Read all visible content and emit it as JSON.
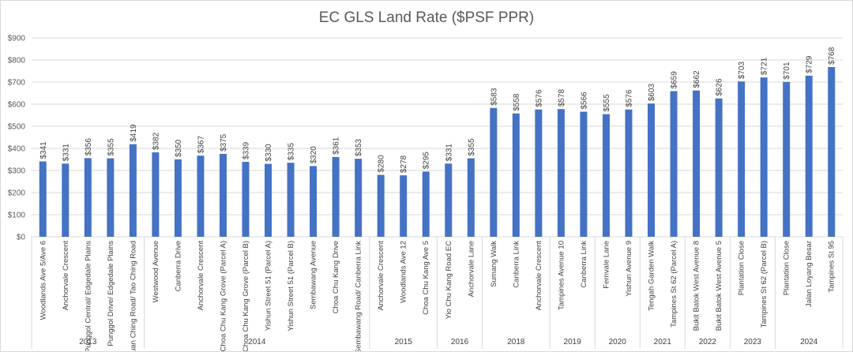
{
  "chart_data": {
    "type": "bar",
    "title": "EC GLS Land Rate ($PSF PPR)",
    "xlabel": "",
    "ylabel": "",
    "ylim": [
      0,
      900
    ],
    "yticks": [
      "$0",
      "$100",
      "$200",
      "$300",
      "$400",
      "$500",
      "$600",
      "$700",
      "$800",
      "$900"
    ],
    "bar_color": "#4472c4",
    "grid": true,
    "legend": "none",
    "categories": [
      "Woodlands Ave 5/Ave 6",
      "Anchorvale Crescent",
      "Punggol Central/ Edgedale Plains",
      "Punggol Drive/ Edgedale Plains",
      "Yuan Ching Road/ Tao Ching Road",
      "Westwood Avenue",
      "Canberra Drive",
      "Anchorvale Crescent",
      "Choa Chu Kang Grove (Parcel A)",
      "Choa Chu Kang Grove (Parcel B)",
      "Yishun Street 51 (Parcel A)",
      "Yishun Street 51 (Parcel B)",
      "Sembawang Avenue",
      "Choa Chu Kang Drive",
      "Sembawang Road/ Canberra Link",
      "Anchorvale Crescent",
      "Woodlands Ave 12",
      "Choa Chu Kang Ave 5",
      "Yio Chu Kang Road EC",
      "Anchorvale Lane",
      "Sumang Walk",
      "Canberra Link",
      "Anchorvale Crescent",
      "Tampines Avenue 10",
      "Canberra Link",
      "Fernvale Lane",
      "Yishun Avenue 9",
      "Tengah Garden Walk",
      "Tampines St 62 (Parcel A)",
      "Bukit Batok West Avenue 8",
      "Bukit Batok West Avenue 5",
      "Plantation Close",
      "Tampines St 62 (Parcel B)",
      "Plantation Close",
      "Jalan Loyang Besar",
      "Tampines St 95"
    ],
    "values": [
      341,
      331,
      356,
      355,
      419,
      382,
      350,
      367,
      375,
      339,
      330,
      335,
      320,
      361,
      353,
      280,
      278,
      295,
      331,
      355,
      583,
      558,
      576,
      578,
      566,
      555,
      576,
      603,
      659,
      662,
      626,
      703,
      721,
      701,
      729,
      768
    ],
    "data_labels": [
      "$341",
      "$331",
      "$356",
      "$355",
      "$419",
      "$382",
      "$350",
      "$367",
      "$375",
      "$339",
      "$330",
      "$335",
      "$320",
      "$361",
      "$353",
      "$280",
      "$278",
      "$295",
      "$331",
      "$355",
      "$583",
      "$558",
      "$576",
      "$578",
      "$566",
      "$555",
      "$576",
      "$603",
      "$659",
      "$662",
      "$626",
      "$703",
      "$721",
      "$701",
      "$729",
      "$768"
    ],
    "groups": [
      {
        "label": "2013",
        "count": 5
      },
      {
        "label": "2014",
        "count": 10
      },
      {
        "label": "2015",
        "count": 3
      },
      {
        "label": "2016",
        "count": 2
      },
      {
        "label": "2018",
        "count": 3
      },
      {
        "label": "2019",
        "count": 2
      },
      {
        "label": "2020",
        "count": 2
      },
      {
        "label": "2021",
        "count": 2
      },
      {
        "label": "2022",
        "count": 2
      },
      {
        "label": "2023",
        "count": 2
      },
      {
        "label": "2024",
        "count": 3
      }
    ]
  }
}
